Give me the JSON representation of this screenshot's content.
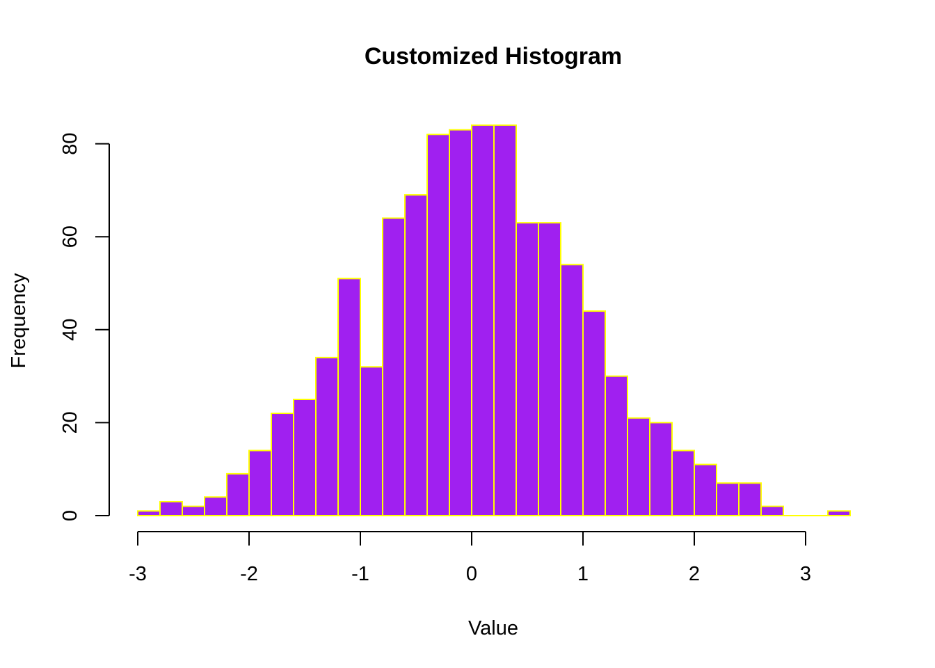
{
  "chart_data": {
    "type": "bar",
    "title": "Customized Histogram",
    "xlabel": "Value",
    "ylabel": "Frequency",
    "bin_width": 0.2,
    "bin_start": -3.0,
    "values": [
      1,
      3,
      2,
      4,
      9,
      14,
      22,
      25,
      34,
      51,
      32,
      64,
      69,
      82,
      83,
      84,
      84,
      63,
      63,
      54,
      44,
      30,
      21,
      20,
      14,
      11,
      7,
      7,
      2,
      0,
      0,
      1
    ],
    "xlim": [
      -3,
      3.4
    ],
    "ylim": [
      0,
      84
    ],
    "x_ticks": [
      -3,
      -2,
      -1,
      0,
      1,
      2,
      3
    ],
    "y_ticks": [
      0,
      20,
      40,
      60,
      80
    ],
    "bar_fill": "#A020F0",
    "bar_border": "#FFFF00",
    "grid": false,
    "legend": "none"
  }
}
